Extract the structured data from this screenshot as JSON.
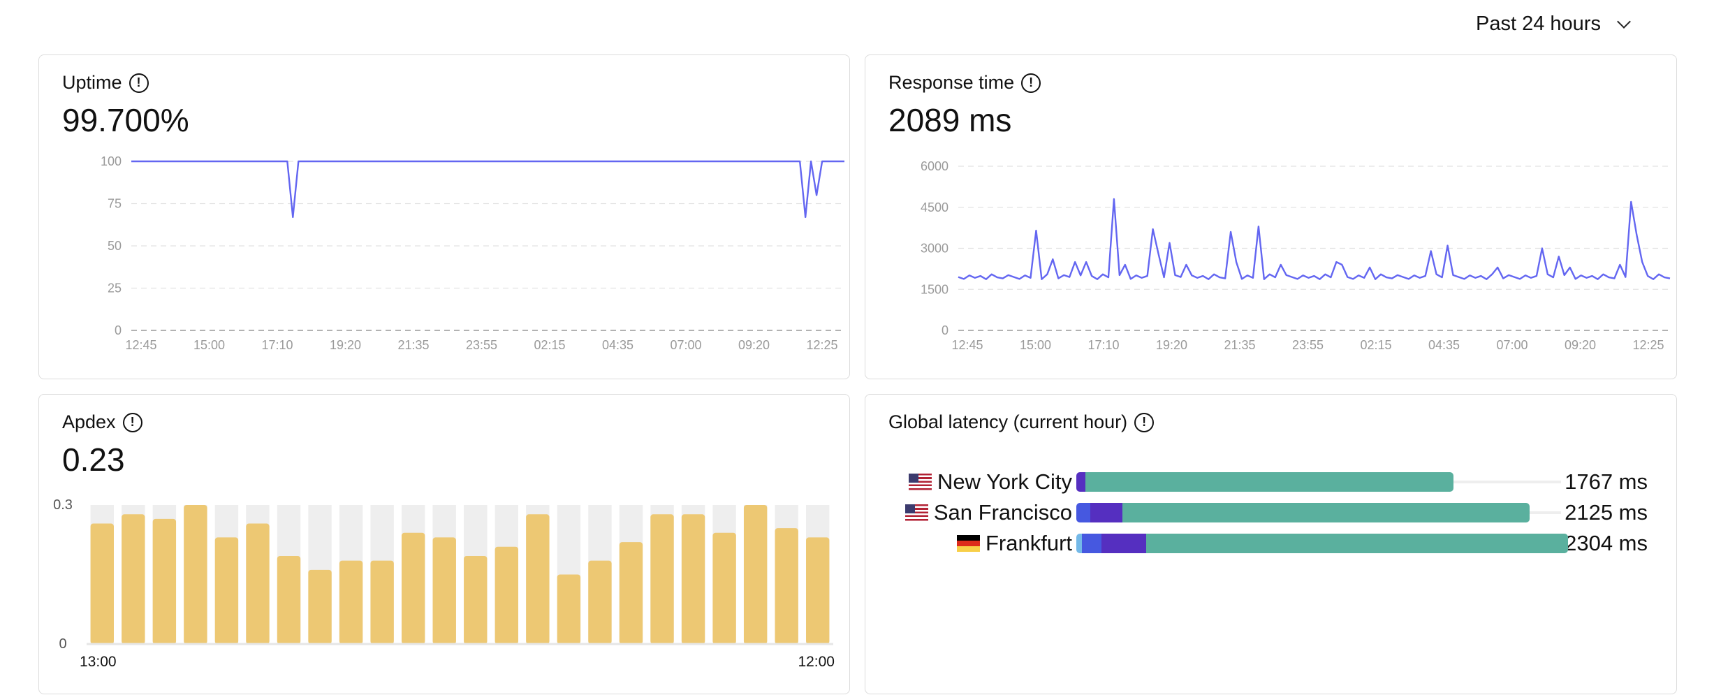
{
  "time_range": {
    "label": "Past 24 hours"
  },
  "cards": {
    "uptime": {
      "title": "Uptime",
      "value": "99.700%"
    },
    "response": {
      "title": "Response time",
      "value": "2089 ms"
    },
    "apdex": {
      "title": "Apdex",
      "value": "0.23"
    },
    "latency": {
      "title": "Global latency (current hour)"
    }
  },
  "chart_data": [
    {
      "type": "line",
      "id": "uptime",
      "ylim": [
        0,
        100
      ],
      "yticks": [
        "0",
        "25",
        "50",
        "75",
        "100"
      ],
      "ytick_values": [
        0,
        25,
        50,
        75,
        100
      ],
      "xticks": [
        "12:45",
        "15:00",
        "17:10",
        "19:20",
        "21:35",
        "23:55",
        "02:15",
        "04:35",
        "07:00",
        "09:20",
        "12:25"
      ],
      "points_count": 129,
      "baseline_value": 100,
      "dips": [
        {
          "index": 29,
          "value": 67
        },
        {
          "index": 121,
          "value": 67
        },
        {
          "index": 123,
          "value": 80
        }
      ],
      "color": "#6366f1"
    },
    {
      "type": "line",
      "id": "response",
      "ylim": [
        0,
        6000
      ],
      "yticks": [
        "0",
        "1500",
        "3000",
        "4500",
        "6000"
      ],
      "ytick_values": [
        0,
        1500,
        3000,
        4500,
        6000
      ],
      "xticks": [
        "12:45",
        "15:00",
        "17:10",
        "19:20",
        "21:35",
        "23:55",
        "02:15",
        "04:35",
        "07:00",
        "09:20",
        "12:25"
      ],
      "color": "#6366f1",
      "values": [
        1950,
        1880,
        2010,
        1920,
        1990,
        1870,
        2050,
        1940,
        1900,
        2020,
        1950,
        1880,
        2010,
        1920,
        3650,
        1870,
        2050,
        2600,
        1900,
        2020,
        1950,
        2500,
        2010,
        2500,
        1990,
        1870,
        2050,
        1940,
        4800,
        2020,
        2400,
        1880,
        2010,
        1920,
        1990,
        3700,
        2800,
        1940,
        3200,
        2020,
        1950,
        2400,
        2010,
        1920,
        1990,
        1870,
        2050,
        1940,
        1900,
        3600,
        2500,
        1880,
        2010,
        1920,
        3800,
        1870,
        2050,
        1940,
        2400,
        2020,
        1950,
        1880,
        2010,
        1920,
        1990,
        1870,
        2050,
        1940,
        2500,
        2400,
        1950,
        1880,
        2010,
        1920,
        2300,
        1870,
        2050,
        1940,
        1900,
        2020,
        1950,
        1880,
        2010,
        1920,
        1990,
        2900,
        2050,
        1940,
        3100,
        2020,
        1950,
        1880,
        2010,
        1920,
        1990,
        1870,
        2050,
        2300,
        1900,
        2020,
        1950,
        1880,
        2010,
        1920,
        1990,
        3000,
        2050,
        1940,
        2700,
        2020,
        2300,
        1880,
        2010,
        1920,
        1990,
        1870,
        2050,
        1940,
        1900,
        2400,
        1950,
        4700,
        3500,
        2500,
        1990,
        1870,
        2050,
        1940,
        1900
      ]
    },
    {
      "type": "bar",
      "id": "apdex",
      "ylim": [
        0,
        0.3
      ],
      "yticks": [
        "0",
        "0.3"
      ],
      "xticks": [
        "13:00",
        "12:00"
      ],
      "color": "#edc873",
      "track_color": "#eeeeee",
      "values": [
        0.26,
        0.28,
        0.27,
        0.3,
        0.23,
        0.26,
        0.19,
        0.16,
        0.18,
        0.18,
        0.24,
        0.23,
        0.19,
        0.21,
        0.28,
        0.15,
        0.18,
        0.22,
        0.28,
        0.28,
        0.24,
        0.3,
        0.25,
        0.23
      ]
    },
    {
      "type": "bar",
      "id": "latency",
      "max": 2304,
      "segment_colors": [
        "#74b9e8",
        "#4658e0",
        "#552fc0",
        "#5ab09e"
      ],
      "rows": [
        {
          "city": "New York City",
          "flag": "us",
          "total": "1767 ms",
          "segments": [
            0,
            0,
            41,
            1726
          ]
        },
        {
          "city": "San Francisco",
          "flag": "us",
          "total": "2125 ms",
          "segments": [
            0,
            67,
            150,
            1908
          ]
        },
        {
          "city": "Frankfurt",
          "flag": "de",
          "total": "2304 ms",
          "segments": [
            26,
            93,
            207,
            1978
          ]
        }
      ]
    }
  ]
}
